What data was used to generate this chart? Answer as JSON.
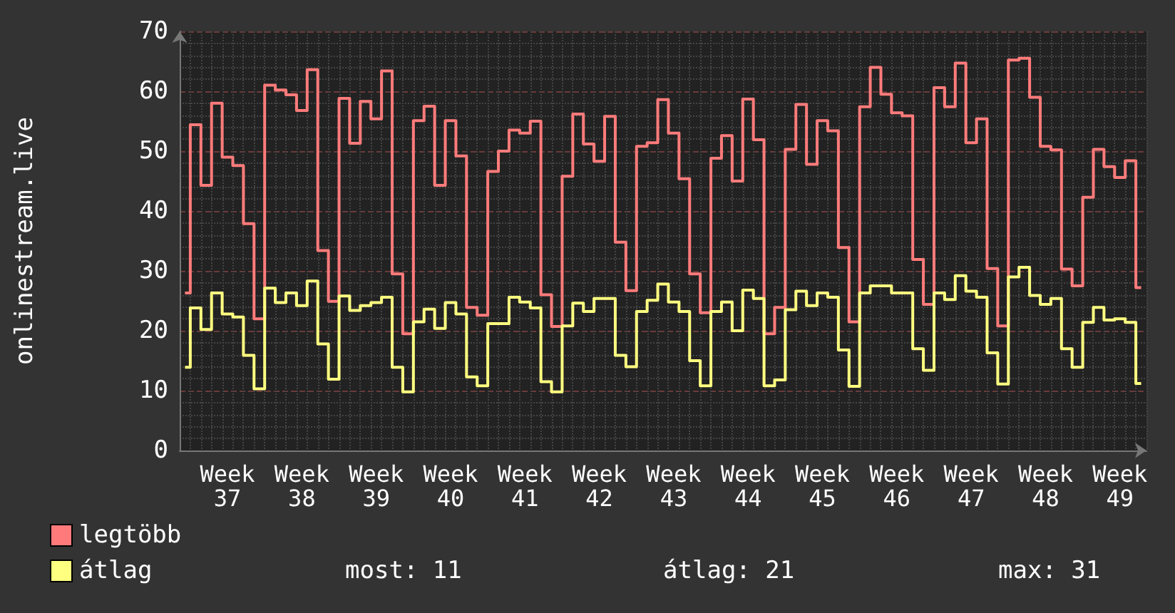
{
  "chart_data": {
    "type": "step",
    "ylabel": "onlinestream.live",
    "categories": [
      null,
      null,
      null,
      null,
      "Week 37",
      null,
      null,
      null,
      null,
      null,
      null,
      "Week 38",
      null,
      null,
      null,
      null,
      null,
      null,
      "Week 39",
      null,
      null,
      null,
      null,
      null,
      null,
      "Week 40",
      null,
      null,
      null,
      null,
      null,
      null,
      "Week 41",
      null,
      null,
      null,
      null,
      null,
      null,
      "Week 42",
      null,
      null,
      null,
      null,
      null,
      null,
      "Week 43",
      null,
      null,
      null,
      null,
      null,
      null,
      "Week 44",
      null,
      null,
      null,
      null,
      null,
      null,
      "Week 45",
      null,
      null,
      null,
      null,
      null,
      null,
      "Week 46",
      null,
      null,
      null,
      null,
      null,
      null,
      "Week 47",
      null,
      null,
      null,
      null,
      null,
      null,
      "Week 48",
      null,
      null,
      null,
      null,
      null,
      null,
      "Week 49",
      null,
      null
    ],
    "series": [
      {
        "name": "legtöbb",
        "color": "#ff7b7b",
        "values": [
          26.3,
          54.4,
          44.3,
          58.0,
          49.0,
          47.6,
          37.9,
          22.0,
          61.0,
          60.2,
          59.4,
          56.8,
          63.6,
          33.4,
          24.9,
          58.8,
          51.3,
          58.3,
          55.4,
          63.4,
          29.5,
          19.5,
          55.1,
          57.5,
          44.3,
          55.1,
          49.2,
          23.9,
          22.6,
          46.6,
          50.0,
          53.5,
          53.0,
          55.0,
          26.0,
          20.7,
          45.8,
          56.2,
          51.2,
          48.3,
          55.8,
          34.8,
          26.7,
          50.8,
          51.4,
          58.6,
          53.0,
          45.4,
          29.5,
          23.0,
          48.8,
          52.6,
          45.0,
          58.7,
          51.9,
          19.5,
          23.9,
          50.3,
          57.8,
          47.8,
          55.1,
          53.4,
          33.9,
          21.5,
          57.4,
          64.0,
          59.5,
          56.4,
          55.9,
          31.9,
          24.4,
          60.6,
          57.4,
          64.7,
          51.4,
          55.4,
          30.4,
          20.8,
          65.2,
          65.5,
          59.0,
          50.8,
          50.2,
          30.3,
          27.5,
          42.3,
          50.3,
          47.4,
          45.6,
          48.4,
          27.2
        ]
      },
      {
        "name": "átlag",
        "color": "#ffff80",
        "values": [
          13.9,
          23.8,
          20.2,
          26.3,
          22.8,
          22.3,
          15.9,
          10.3,
          27.1,
          24.7,
          26.3,
          24.2,
          28.3,
          17.8,
          11.9,
          25.8,
          23.4,
          24.2,
          24.7,
          25.6,
          13.9,
          9.8,
          21.5,
          23.6,
          20.4,
          24.7,
          22.8,
          12.3,
          10.8,
          21.2,
          21.2,
          25.6,
          24.8,
          23.8,
          11.5,
          9.8,
          20.8,
          24.6,
          23.2,
          25.4,
          25.4,
          15.9,
          14.0,
          23.2,
          25.1,
          27.8,
          24.8,
          23.2,
          15.0,
          10.8,
          23.2,
          24.8,
          20.0,
          26.8,
          25.4,
          10.8,
          11.8,
          23.5,
          26.6,
          24.2,
          26.3,
          25.6,
          16.8,
          10.7,
          26.3,
          27.5,
          27.5,
          26.3,
          26.3,
          17.0,
          13.4,
          26.3,
          25.2,
          29.2,
          26.6,
          25.6,
          16.3,
          11.1,
          29.0,
          30.6,
          25.9,
          24.4,
          25.4,
          17.0,
          13.9,
          21.4,
          23.9,
          21.8,
          22.0,
          21.4,
          11.2
        ]
      }
    ],
    "ylim": [
      0,
      70
    ],
    "yticks": [
      0,
      10,
      20,
      30,
      40,
      50,
      60,
      70
    ],
    "grid": true,
    "legend": "bottom left",
    "marker": "none",
    "line_style": "solid",
    "annotations": [
      "most: 11",
      "átlag: 21",
      "max: 31"
    ]
  }
}
